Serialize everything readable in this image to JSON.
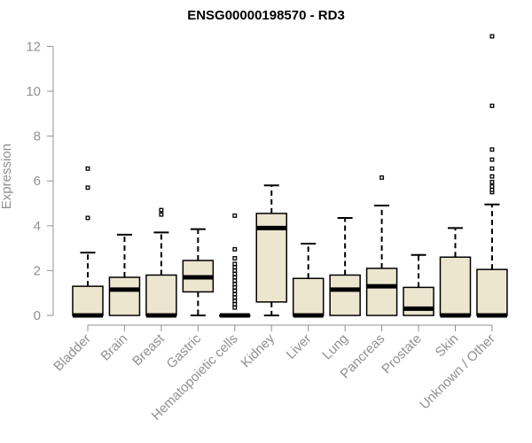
{
  "chart_data": {
    "type": "box",
    "title": "ENSG00000198570 - RD3",
    "ylabel": "Expression",
    "xlabel": "",
    "ylim": [
      0,
      12.4
    ],
    "yticks": [
      0,
      2,
      4,
      6,
      8,
      10,
      12
    ],
    "colors": {
      "box_fill": "#ede6cf",
      "stroke": "#000000",
      "axis": "#909090"
    },
    "categories": [
      "Bladder",
      "Brain",
      "Breast",
      "Gastric",
      "Hematopoietic cells",
      "Kidney",
      "Liver",
      "Lung",
      "Pancreas",
      "Prostate",
      "Skin",
      "Unknown / Other"
    ],
    "boxes": [
      {
        "q1": 0,
        "median": 0,
        "q3": 1.3,
        "whisker_low": 0,
        "whisker_high": 2.8,
        "outliers": [
          4.35,
          5.7,
          6.55
        ]
      },
      {
        "q1": 0,
        "median": 1.15,
        "q3": 1.7,
        "whisker_low": 0,
        "whisker_high": 3.6,
        "outliers": []
      },
      {
        "q1": 0,
        "median": 0,
        "q3": 1.8,
        "whisker_low": 0,
        "whisker_high": 3.7,
        "outliers": [
          4.5,
          4.7
        ]
      },
      {
        "q1": 1.05,
        "median": 1.7,
        "q3": 2.45,
        "whisker_low": 0,
        "whisker_high": 3.85,
        "outliers": []
      },
      {
        "q1": 0,
        "median": 0,
        "q3": 0,
        "whisker_low": 0,
        "whisker_high": 0,
        "outliers": [
          0.35,
          0.5,
          0.65,
          0.8,
          0.95,
          1.1,
          1.25,
          1.4,
          1.55,
          1.7,
          1.85,
          2.0,
          2.15,
          2.3,
          2.55,
          2.95,
          4.45
        ]
      },
      {
        "q1": 0.6,
        "median": 3.9,
        "q3": 4.55,
        "whisker_low": 0,
        "whisker_high": 5.8,
        "outliers": []
      },
      {
        "q1": 0,
        "median": 0,
        "q3": 1.65,
        "whisker_low": 0,
        "whisker_high": 3.2,
        "outliers": []
      },
      {
        "q1": 0,
        "median": 1.15,
        "q3": 1.8,
        "whisker_low": 0,
        "whisker_high": 4.35,
        "outliers": []
      },
      {
        "q1": 0,
        "median": 1.3,
        "q3": 2.1,
        "whisker_low": 0,
        "whisker_high": 4.9,
        "outliers": [
          6.15
        ]
      },
      {
        "q1": 0,
        "median": 0.3,
        "q3": 1.25,
        "whisker_low": 0,
        "whisker_high": 2.7,
        "outliers": []
      },
      {
        "q1": 0,
        "median": 0,
        "q3": 2.6,
        "whisker_low": 0,
        "whisker_high": 3.9,
        "outliers": []
      },
      {
        "q1": 0,
        "median": 0,
        "q3": 2.05,
        "whisker_low": 0,
        "whisker_high": 4.95,
        "outliers": [
          5.5,
          5.6,
          5.75,
          5.95,
          6.2,
          6.55,
          6.95,
          7.4,
          9.35,
          12.45
        ]
      }
    ]
  }
}
